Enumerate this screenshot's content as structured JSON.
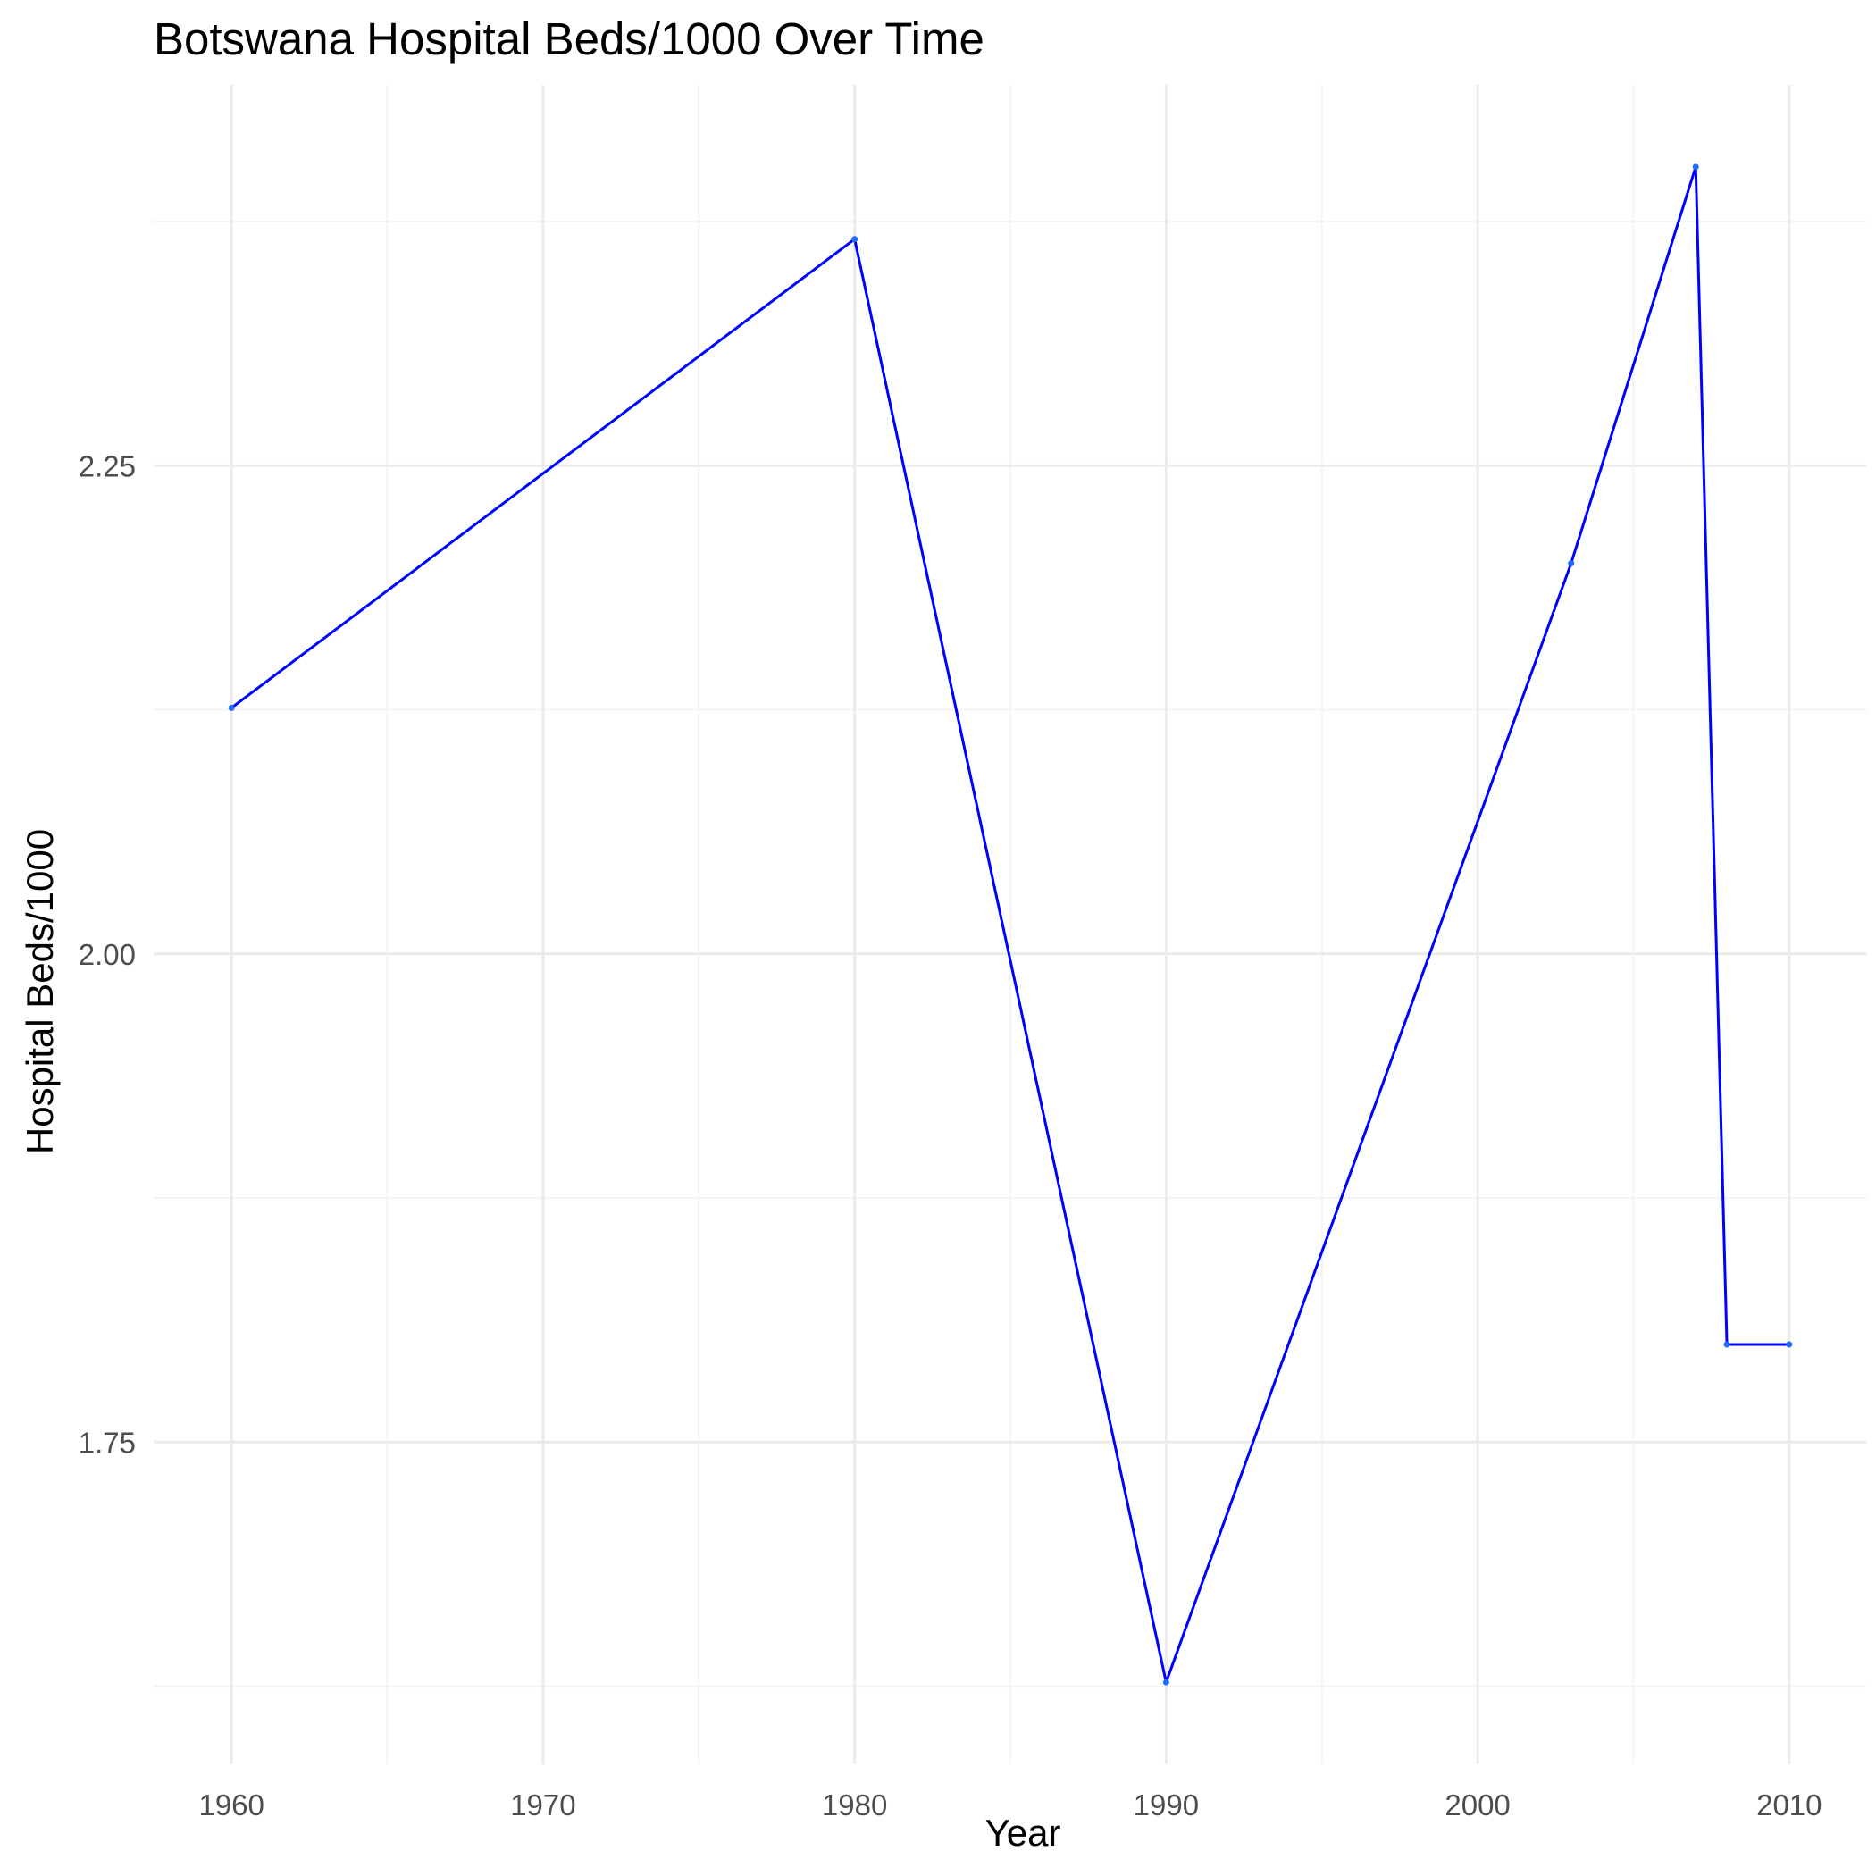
{
  "chart_data": {
    "type": "line",
    "title": "Botswana Hospital Beds/1000 Over Time",
    "xlabel": "Year",
    "ylabel": "Hospital Beds/1000",
    "x": [
      1960,
      1980,
      1990,
      2003,
      2007,
      2008,
      2010
    ],
    "series": [
      {
        "values": [
          2.126,
          2.366,
          1.627,
          2.2,
          2.403,
          1.8,
          1.8
        ]
      }
    ],
    "xlim": [
      1957.5,
      2012.5
    ],
    "ylim": [
      1.585,
      2.445
    ],
    "x_ticks": [
      1960,
      1970,
      1980,
      1990,
      2000,
      2010
    ],
    "x_tick_labels": [
      "1960",
      "1970",
      "1980",
      "1990",
      "2000",
      "2010"
    ],
    "x_minor_ticks": [
      1965,
      1975,
      1985,
      1995,
      2005
    ],
    "y_ticks": [
      1.75,
      2.0,
      2.25
    ],
    "y_tick_labels": [
      "1.75",
      "2.00",
      "2.25"
    ],
    "y_minor_ticks": [
      1.625,
      1.875,
      2.125,
      2.375
    ],
    "grid": true,
    "legend": "none",
    "colors": {
      "line": "#0000ff",
      "point": "#1e6bff",
      "grid_major": "#ebebeb",
      "grid_minor": "#f4f4f4",
      "tick_text": "#4d4d4d"
    }
  }
}
